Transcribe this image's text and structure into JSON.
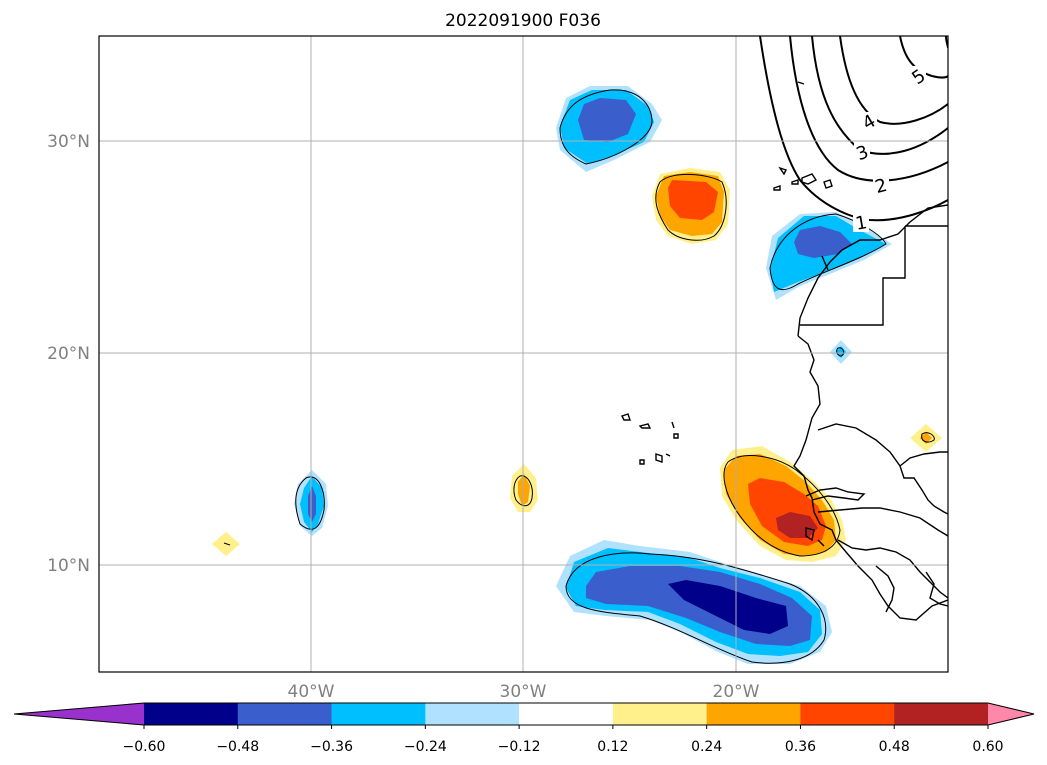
{
  "chart_data": {
    "type": "heatmap",
    "title": "2022091900 F036",
    "map": {
      "lon_range": [
        -50,
        -10
      ],
      "lat_range": [
        5,
        35
      ],
      "gridlines": true,
      "lat_ticks": [
        {
          "value": 30,
          "label": "30°N"
        },
        {
          "value": 20,
          "label": "20°N"
        },
        {
          "value": 10,
          "label": "10°N"
        }
      ],
      "lon_ticks": [
        {
          "value": -40,
          "label": "40°W"
        },
        {
          "value": -30,
          "label": "30°W"
        },
        {
          "value": -20,
          "label": "20°W"
        }
      ],
      "contour_labels": [
        "1",
        "2",
        "3",
        "4",
        "5"
      ]
    },
    "colorbar": {
      "orientation": "horizontal",
      "extend": "both",
      "tick_labels": [
        "−0.60",
        "−0.48",
        "−0.36",
        "−0.24",
        "−0.12",
        "0.12",
        "0.24",
        "0.36",
        "0.48",
        "0.60"
      ],
      "levels": [
        -0.6,
        -0.48,
        -0.36,
        -0.24,
        -0.12,
        0.12,
        0.24,
        0.36,
        0.48,
        0.6
      ],
      "colors": [
        "#9932cc",
        "#00008b",
        "#3a5fcd",
        "#00bfff",
        "#b0e2ff",
        "#ffffff",
        "#fff08c",
        "#ffa500",
        "#ff4500",
        "#b22222",
        "#ff88aa"
      ]
    },
    "anomalies": [
      {
        "name": "n1",
        "lon": -26.0,
        "lat": 30.6,
        "peak": -0.42
      },
      {
        "name": "n2",
        "lon": -16.0,
        "lat": 25.0,
        "peak": -0.42
      },
      {
        "name": "n3",
        "lon": -40.0,
        "lat": 13.0,
        "peak": -0.38
      },
      {
        "name": "n4",
        "lon": -23.5,
        "lat": 8.5,
        "peak": -0.55
      },
      {
        "name": "n5",
        "lon": -15.2,
        "lat": 20.0,
        "peak": -0.2
      },
      {
        "name": "p1",
        "lon": -22.6,
        "lat": 26.9,
        "peak": 0.42
      },
      {
        "name": "p2",
        "lon": -18.5,
        "lat": 12.5,
        "peak": 0.52
      },
      {
        "name": "p3",
        "lon": -30.0,
        "lat": 13.6,
        "peak": 0.3
      },
      {
        "name": "p4",
        "lon": -44.0,
        "lat": 11.0,
        "peak": 0.18
      },
      {
        "name": "p5",
        "lon": -11.0,
        "lat": 16.0,
        "peak": 0.22
      }
    ]
  }
}
